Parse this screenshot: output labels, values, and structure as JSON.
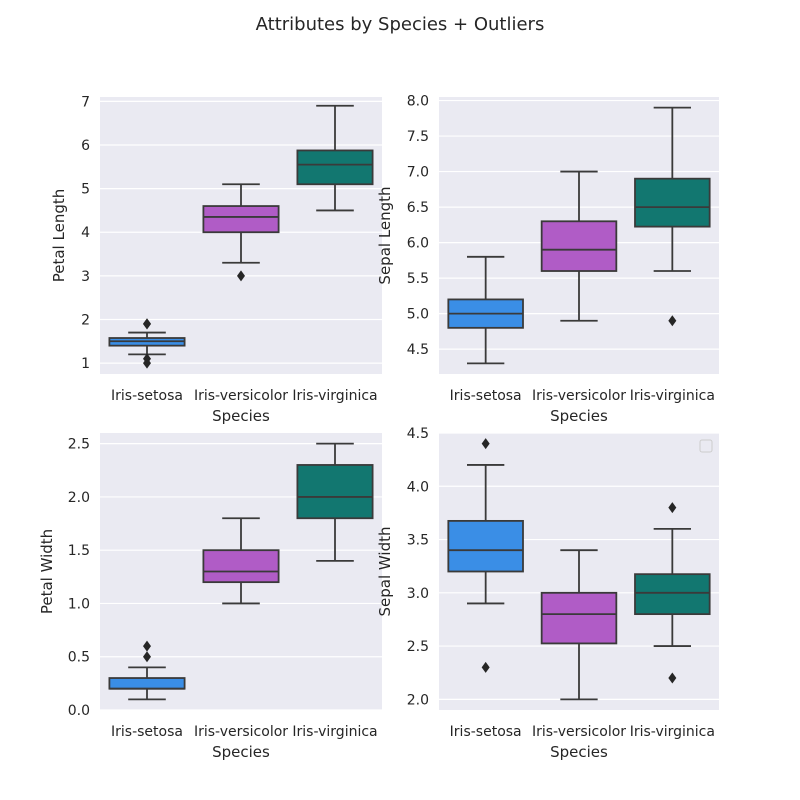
{
  "title": "Attributes by Species + Outliers",
  "colors": {
    "background": "#eaeaf2",
    "grid": "#ffffff",
    "line": "#3a3a3a",
    "setosa": "#3a8ee6",
    "versicolor": "#b05cc6",
    "virginica": "#127770"
  },
  "chart_data": [
    {
      "type": "box",
      "xlabel": "Species",
      "ylabel": "Petal Length",
      "categories": [
        "Iris-setosa",
        "Iris-versicolor",
        "Iris-virginica"
      ],
      "ylim": [
        0.75,
        7.1
      ],
      "yticks": [
        1,
        2,
        3,
        4,
        5,
        6,
        7
      ],
      "ytick_labels": [
        "1",
        "2",
        "3",
        "4",
        "5",
        "6",
        "7"
      ],
      "grid": true,
      "boxes": [
        {
          "category": "Iris-setosa",
          "whisker_low": 1.2,
          "q1": 1.4,
          "median": 1.5,
          "q3": 1.575,
          "whisker_high": 1.7,
          "outliers": [
            1.9,
            1.9,
            1.1,
            1.0
          ]
        },
        {
          "category": "Iris-versicolor",
          "whisker_low": 3.3,
          "q1": 4.0,
          "median": 4.35,
          "q3": 4.6,
          "whisker_high": 5.1,
          "outliers": [
            3.0
          ]
        },
        {
          "category": "Iris-virginica",
          "whisker_low": 4.5,
          "q1": 5.1,
          "median": 5.55,
          "q3": 5.875,
          "whisker_high": 6.9,
          "outliers": []
        }
      ]
    },
    {
      "type": "box",
      "xlabel": "Species",
      "ylabel": "Sepal Length",
      "categories": [
        "Iris-setosa",
        "Iris-versicolor",
        "Iris-virginica"
      ],
      "ylim": [
        4.15,
        8.05
      ],
      "yticks": [
        4.5,
        5.0,
        5.5,
        6.0,
        6.5,
        7.0,
        7.5,
        8.0
      ],
      "ytick_labels": [
        "4.5",
        "5.0",
        "5.5",
        "6.0",
        "6.5",
        "7.0",
        "7.5",
        "8.0"
      ],
      "grid": true,
      "boxes": [
        {
          "category": "Iris-setosa",
          "whisker_low": 4.3,
          "q1": 4.8,
          "median": 5.0,
          "q3": 5.2,
          "whisker_high": 5.8,
          "outliers": []
        },
        {
          "category": "Iris-versicolor",
          "whisker_low": 4.9,
          "q1": 5.6,
          "median": 5.9,
          "q3": 6.3,
          "whisker_high": 7.0,
          "outliers": []
        },
        {
          "category": "Iris-virginica",
          "whisker_low": 5.6,
          "q1": 6.225,
          "median": 6.5,
          "q3": 6.9,
          "whisker_high": 7.9,
          "outliers": [
            4.9
          ]
        }
      ]
    },
    {
      "type": "box",
      "xlabel": "Species",
      "ylabel": "Petal Width",
      "categories": [
        "Iris-setosa",
        "Iris-versicolor",
        "Iris-virginica"
      ],
      "ylim": [
        0.0,
        2.6
      ],
      "yticks": [
        0.0,
        0.5,
        1.0,
        1.5,
        2.0,
        2.5
      ],
      "ytick_labels": [
        "0.0",
        "0.5",
        "1.0",
        "1.5",
        "2.0",
        "2.5"
      ],
      "grid": true,
      "boxes": [
        {
          "category": "Iris-setosa",
          "whisker_low": 0.1,
          "q1": 0.2,
          "median": 0.2,
          "q3": 0.3,
          "whisker_high": 0.4,
          "outliers": [
            0.5,
            0.6
          ]
        },
        {
          "category": "Iris-versicolor",
          "whisker_low": 1.0,
          "q1": 1.2,
          "median": 1.3,
          "q3": 1.5,
          "whisker_high": 1.8,
          "outliers": []
        },
        {
          "category": "Iris-virginica",
          "whisker_low": 1.4,
          "q1": 1.8,
          "median": 2.0,
          "q3": 2.3,
          "whisker_high": 2.5,
          "outliers": []
        }
      ]
    },
    {
      "type": "box",
      "xlabel": "Species",
      "ylabel": "Sepal Width",
      "categories": [
        "Iris-setosa",
        "Iris-versicolor",
        "Iris-virginica"
      ],
      "ylim": [
        1.9,
        4.5
      ],
      "yticks": [
        2.0,
        2.5,
        3.0,
        3.5,
        4.0,
        4.5
      ],
      "ytick_labels": [
        "2.0",
        "2.5",
        "3.0",
        "3.5",
        "4.0",
        "4.5"
      ],
      "grid": true,
      "legend": "empty, top-right",
      "boxes": [
        {
          "category": "Iris-setosa",
          "whisker_low": 2.9,
          "q1": 3.2,
          "median": 3.4,
          "q3": 3.675,
          "whisker_high": 4.2,
          "outliers": [
            4.4,
            2.3
          ]
        },
        {
          "category": "Iris-versicolor",
          "whisker_low": 2.0,
          "q1": 2.525,
          "median": 2.8,
          "q3": 3.0,
          "whisker_high": 3.4,
          "outliers": []
        },
        {
          "category": "Iris-virginica",
          "whisker_low": 2.5,
          "q1": 2.8,
          "median": 3.0,
          "q3": 3.175,
          "whisker_high": 3.6,
          "outliers": [
            3.8,
            2.2
          ]
        }
      ]
    }
  ]
}
